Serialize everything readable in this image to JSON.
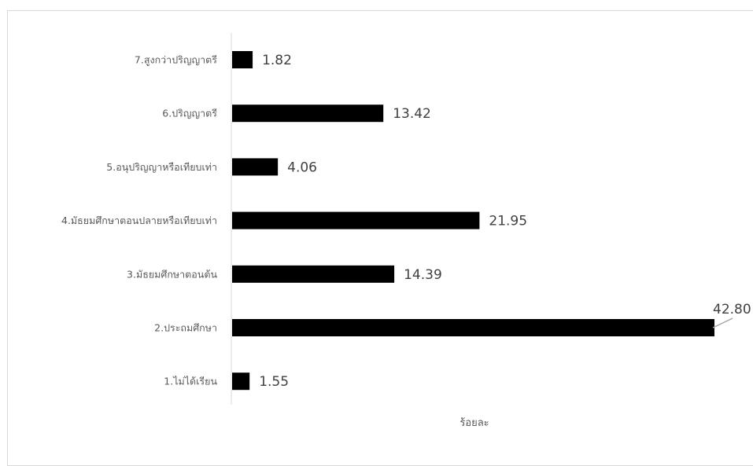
{
  "chart_data": {
    "type": "bar",
    "orientation": "horizontal",
    "categories": [
      "1.ไม่ได้เรียน",
      "2.ประถมศึกษา",
      "3.มัธยมศึกษาตอนต้น",
      "4.มัธยมศึกษาตอนปลายหรือเทียบเท่า",
      "5.อนุปริญญาหรือเทียบเท่า",
      "6.ปริญญาตรี",
      "7.สูงกว่าปริญญาตรี"
    ],
    "values": [
      1.55,
      42.8,
      14.39,
      21.95,
      4.06,
      13.42,
      1.82
    ],
    "value_labels": [
      "1.55",
      "42.80",
      "14.39",
      "21.95",
      "4.06",
      "13.42",
      "1.82"
    ],
    "title": "",
    "xlabel": "ร้อยละ",
    "ylabel": "",
    "xlim": [
      0,
      42.8
    ],
    "bar_color": "#000000",
    "grid": false,
    "legend": "none"
  }
}
